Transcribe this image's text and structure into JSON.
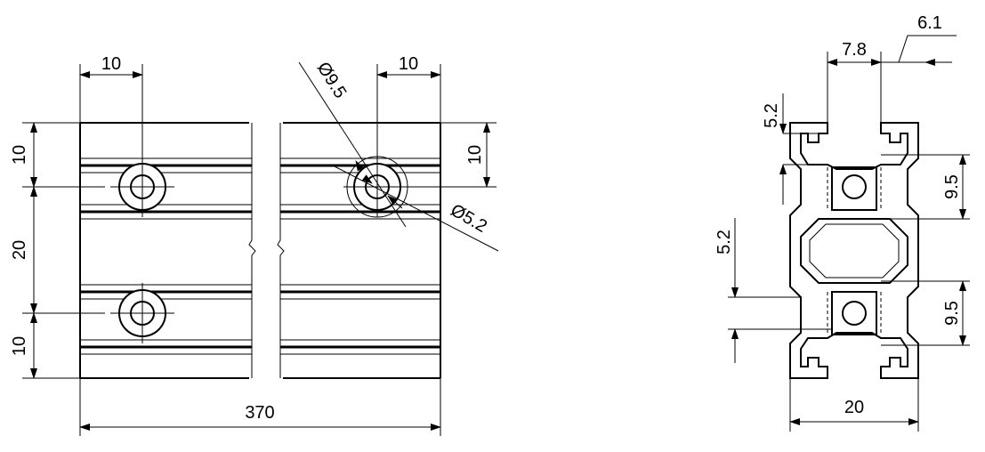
{
  "drawing": {
    "front_view": {
      "dim_left_hole_offset": "10",
      "dim_right_hole_offset": "10",
      "dim_counterbore_diameter": "Ø9.5",
      "dim_hole_diameter": "Ø5.2",
      "dim_left_top": "10",
      "dim_left_middle": "20",
      "dim_left_bottom": "10",
      "dim_right_top": "10",
      "dim_overall_length": "370"
    },
    "section_view": {
      "dim_slot_width": "7.8",
      "dim_flange": "6.1",
      "dim_top_depth": "5.2",
      "dim_lower_depth": "5.2",
      "dim_upper_bore": "9.5",
      "dim_lower_bore": "9.5",
      "dim_width": "20"
    }
  }
}
